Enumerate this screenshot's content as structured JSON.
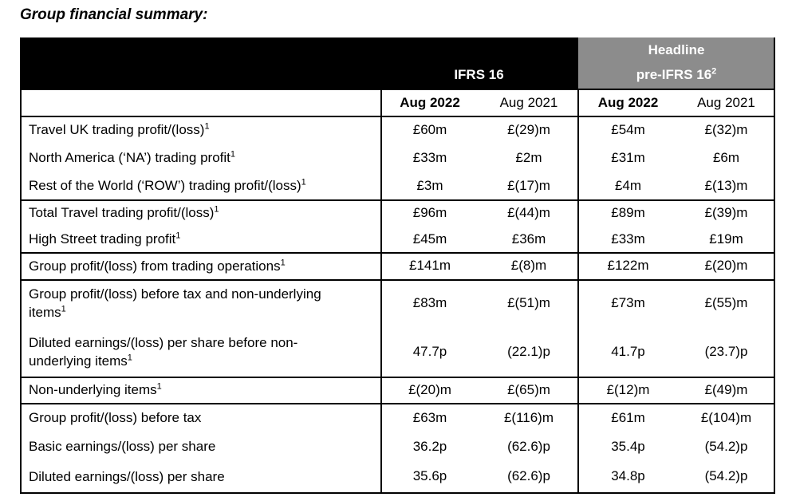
{
  "title": "Group financial summary:",
  "table": {
    "header": {
      "ifrs": "IFRS 16",
      "headline": "Headline",
      "pre_ifrs": "pre-IFRS 16",
      "pre_ifrs_note": "2",
      "columns": [
        "Aug 2022",
        "Aug 2021",
        "Aug 2022",
        "Aug 2021"
      ]
    },
    "groups": [
      [
        {
          "label": "Travel UK trading profit/(loss)",
          "note": "1",
          "cells": [
            "£60m",
            "£(29)m",
            "£54m",
            "£(32)m"
          ]
        },
        {
          "label": "North America (‘NA’) trading profit",
          "note": "1",
          "cells": [
            "£33m",
            "£2m",
            "£31m",
            "£6m"
          ]
        },
        {
          "label": "Rest of the World (‘ROW’) trading profit/(loss)",
          "note": "1",
          "cells": [
            "£3m",
            "£(17)m",
            "£4m",
            "£(13)m"
          ]
        }
      ],
      [
        {
          "label": "Total Travel trading profit/(loss)",
          "note": "1",
          "cells": [
            "£96m",
            "£(44)m",
            "£89m",
            "£(39)m"
          ]
        },
        {
          "label": "High Street trading profit",
          "note": "1",
          "cells": [
            "£45m",
            "£36m",
            "£33m",
            "£19m"
          ]
        }
      ],
      [
        {
          "label": "Group profit/(loss) from trading operations",
          "note": "1",
          "cells": [
            "£141m",
            "£(8)m",
            "£122m",
            "£(20)m"
          ]
        }
      ],
      [
        {
          "label": "Group profit/(loss) before tax and non-underlying items",
          "note": "1",
          "cells": [
            "£83m",
            "£(51)m",
            "£73m",
            "£(55)m"
          ]
        },
        {
          "label": "Diluted earnings/(loss) per share before non-underlying items",
          "note": "1",
          "cells": [
            "47.7p",
            "(22.1)p",
            "41.7p",
            "(23.7)p"
          ]
        }
      ],
      [
        {
          "label": "Non-underlying items",
          "note": "1",
          "cells": [
            "£(20)m",
            "£(65)m",
            "£(12)m",
            "£(49)m"
          ]
        }
      ],
      [
        {
          "label": "Group profit/(loss) before tax",
          "cells": [
            "£63m",
            "£(116)m",
            "£61m",
            "£(104)m"
          ]
        },
        {
          "label": "Basic earnings/(loss) per share",
          "cells": [
            "36.2p",
            "(62.6)p",
            "35.4p",
            "(54.2)p"
          ]
        },
        {
          "label": "Diluted earnings/(loss) per share",
          "cells": [
            "35.6p",
            "(62.6)p",
            "34.8p",
            "(54.2)p"
          ]
        }
      ]
    ]
  }
}
